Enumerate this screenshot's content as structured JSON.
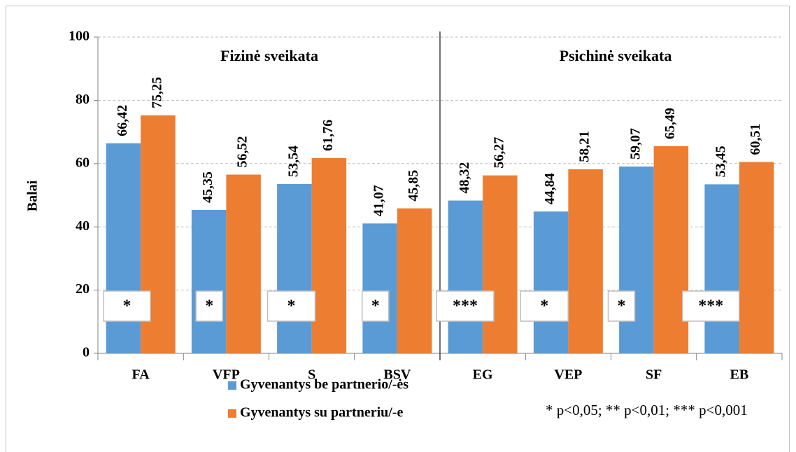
{
  "chart_data": {
    "type": "bar",
    "y_label": "Balai",
    "sections": [
      "Fizinė sveikata",
      "Psichinė sveikata"
    ],
    "categories": [
      "FA",
      "VFP",
      "S",
      "BSV",
      "EG",
      "VEP",
      "SF",
      "EB"
    ],
    "series": [
      {
        "name": "Gyvenantys be partnerio/-ės",
        "color": "#5b9bd5",
        "values": [
          66.42,
          45.35,
          53.54,
          41.07,
          48.32,
          44.84,
          59.07,
          53.45
        ],
        "value_labels": [
          "66,42",
          "45,35",
          "53,54",
          "41,07",
          "48,32",
          "44,84",
          "59,07",
          "53,45"
        ]
      },
      {
        "name": "Gyvenantys su partneriu/-e",
        "color": "#ed7d31",
        "values": [
          75.25,
          56.52,
          61.76,
          45.85,
          56.27,
          58.21,
          65.49,
          60.51
        ],
        "value_labels": [
          "75,25",
          "56,52",
          "61,76",
          "45,85",
          "56,27",
          "58,21",
          "65,49",
          "60,51"
        ]
      }
    ],
    "significance": [
      "*",
      "*",
      "*",
      "*",
      "***",
      "*",
      "*",
      "***"
    ],
    "note": "* p<0,05; ** p<0,01; *** p<0,001",
    "ylim": [
      0,
      100
    ],
    "yticks": [
      0,
      20,
      40,
      60,
      80,
      100
    ],
    "grid": true
  }
}
